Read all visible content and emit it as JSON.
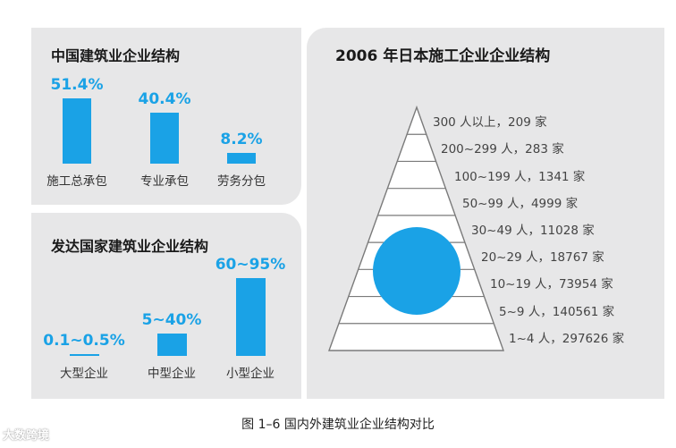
{
  "chart_data": [
    {
      "type": "bar",
      "title": "中国建筑业企业结构",
      "categories": [
        "施工总承包",
        "专业承包",
        "劳务分包"
      ],
      "labels": [
        "51.4%",
        "40.4%",
        "8.2%"
      ],
      "values": [
        51.4,
        40.4,
        8.2
      ],
      "unit": "%"
    },
    {
      "type": "bar",
      "title": "发达国家建筑业企业结构",
      "categories": [
        "大型企业",
        "中型企业",
        "小型企业"
      ],
      "labels": [
        "0.1~0.5%",
        "5~40%",
        "60~95%"
      ],
      "values": [
        0.3,
        22.5,
        77.5
      ],
      "unit": "%"
    },
    {
      "type": "pyramid",
      "title": "2006 年日本施工企业企业结构",
      "tiers": [
        {
          "label": "300 人以上，209 家",
          "range": "300 人以上",
          "count": 209
        },
        {
          "label": "200~299 人，283 家",
          "range": "200~299 人",
          "count": 283
        },
        {
          "label": "100~199 人，1341 家",
          "range": "100~199 人",
          "count": 1341
        },
        {
          "label": "50~99 人，4999 家",
          "range": "50~99 人",
          "count": 4999
        },
        {
          "label": "30~49 人，11028 家",
          "range": "30~49 人",
          "count": 11028
        },
        {
          "label": "20~29 人，18767 家",
          "range": "20~29 人",
          "count": 18767
        },
        {
          "label": "10~19 人，73954 家",
          "range": "10~19 人",
          "count": 73954
        },
        {
          "label": "5~9 人，140561 家",
          "range": "5~9 人",
          "count": 140561
        },
        {
          "label": "1~4 人，297626 家",
          "range": "1~4 人",
          "count": 297626
        }
      ]
    }
  ],
  "caption": "图 1–6  国内外建筑业企业结构对比",
  "watermark": "大数跨境",
  "colors": {
    "bar": "#1aa2e6",
    "panel": "#e7e7e8",
    "circle": "#1aa2e6"
  }
}
